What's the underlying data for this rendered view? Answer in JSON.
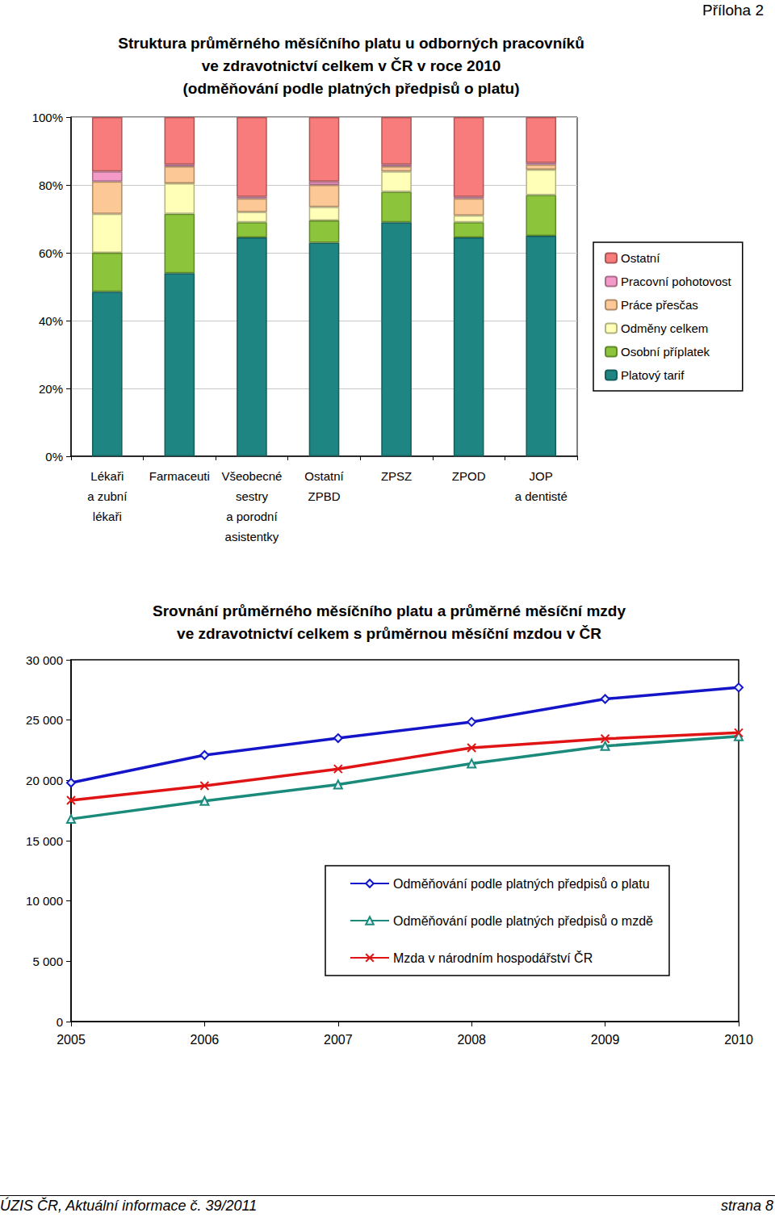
{
  "page": {
    "annex": "Příloha 2",
    "footer_left": "ÚZIS ČR, Aktuální informace č. 39/2011",
    "footer_right": "strana 8"
  },
  "chart_data": [
    {
      "type": "bar",
      "title": "Struktura průměrného měsíčního platu u odborných pracovníků\nve zdravotnictví celkem v ČR v roce 2010\n(odměňování podle platných předpisů o platu)",
      "categories": [
        "Lékaři\na zubní\nlékaři",
        "Farmaceuti",
        "Všeobecné\nsestry\na porodní\nasistentky",
        "Ostatní\nZPBD",
        "ZPSZ",
        "ZPOD",
        "JOP\na dentisté"
      ],
      "series": [
        {
          "name": "Platový tarif",
          "color": "#1e8582",
          "values": [
            48.5,
            54,
            64.5,
            63,
            69,
            64.5,
            65
          ]
        },
        {
          "name": "Osobní příplatek",
          "color": "#8cc43c",
          "values": [
            11.5,
            17.5,
            4.5,
            6.5,
            9,
            4.5,
            12
          ]
        },
        {
          "name": "Odměny celkem",
          "color": "#ffffb8",
          "values": [
            11.5,
            9,
            3,
            4,
            6,
            2,
            7.5
          ]
        },
        {
          "name": "Práce přesčas",
          "color": "#fcc896",
          "values": [
            9.5,
            5,
            4,
            6.5,
            1.5,
            5,
            1.5
          ]
        },
        {
          "name": "Pracovní pohotovost",
          "color": "#f49ac8",
          "values": [
            3,
            0.5,
            0.5,
            1,
            0.5,
            0.5,
            0.5
          ]
        },
        {
          "name": "Ostatní",
          "color": "#f87c7c",
          "values": [
            16,
            14,
            23.5,
            19,
            14,
            23.5,
            13.5
          ]
        }
      ],
      "stacked": true,
      "ylim": [
        0,
        100
      ],
      "yticks": [
        {
          "value": 0,
          "label": "0%"
        },
        {
          "value": 20,
          "label": "20%"
        },
        {
          "value": 40,
          "label": "40%"
        },
        {
          "value": 60,
          "label": "60%"
        },
        {
          "value": 80,
          "label": "80%"
        },
        {
          "value": 100,
          "label": "100%"
        }
      ],
      "grid": true,
      "legend": "right"
    },
    {
      "type": "line",
      "title": "Srovnání průměrného měsíčního platu a průměrné měsíční mzdy\nve zdravotnictví celkem s průměrnou měsíční mzdou v ČR",
      "categories": [
        "2005",
        "2006",
        "2007",
        "2008",
        "2009",
        "2010"
      ],
      "series": [
        {
          "name": "Odměňování podle platných předpisů o platu",
          "color": "#1414c8",
          "marker": "diamond",
          "values": [
            19800,
            22100,
            23500,
            24850,
            26750,
            27700
          ]
        },
        {
          "name": "Odměňování podle platných předpisů o mzdě",
          "color": "#1a8a7a",
          "marker": "triangle",
          "values": [
            16800,
            18300,
            19650,
            21400,
            22850,
            23650
          ]
        },
        {
          "name": "Mzda v národním hospodářství ČR",
          "color": "#e01414",
          "marker": "x",
          "values": [
            18350,
            19550,
            20950,
            22700,
            23450,
            23950
          ]
        }
      ],
      "ylim": [
        0,
        30000
      ],
      "yticks": [
        0,
        {
          "value": 5000,
          "label": "5 000"
        },
        {
          "value": 10000,
          "label": "10 000"
        },
        {
          "value": 15000,
          "label": "15 000"
        },
        {
          "value": 20000,
          "label": "20 000"
        },
        {
          "value": 25000,
          "label": "25 000"
        },
        {
          "value": 30000,
          "label": "30 000"
        }
      ],
      "grid": false,
      "legend": "lower right"
    }
  ]
}
